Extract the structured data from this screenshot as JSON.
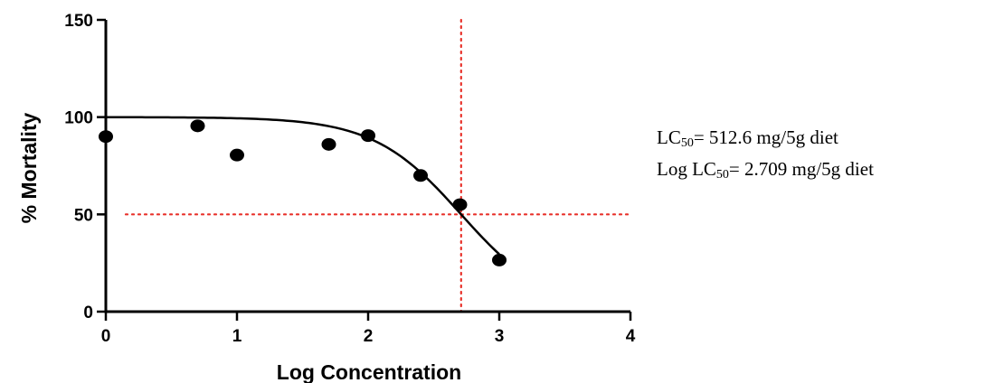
{
  "chart_data": {
    "type": "scatter",
    "xlabel": "Log Concentration",
    "ylabel": "% Mortality",
    "xlim": [
      0,
      4
    ],
    "ylim": [
      0,
      150
    ],
    "x_ticks": [
      "0",
      "1",
      "2",
      "3",
      "4"
    ],
    "y_ticks": [
      "0",
      "50",
      "100",
      "150"
    ],
    "x_tick_values": [
      0,
      1,
      2,
      3,
      4
    ],
    "y_tick_values": [
      0,
      50,
      100,
      150
    ],
    "points": [
      {
        "x": 0.0,
        "y": 90
      },
      {
        "x": 0.7,
        "y": 95.5
      },
      {
        "x": 1.0,
        "y": 80.5
      },
      {
        "x": 1.7,
        "y": 86
      },
      {
        "x": 2.0,
        "y": 90.5
      },
      {
        "x": 2.4,
        "y": 70
      },
      {
        "x": 2.7,
        "y": 55
      },
      {
        "x": 3.0,
        "y": 26.5
      }
    ],
    "fit_curve": {
      "top": 100,
      "bottom": 0,
      "log_ec50": 2.709,
      "hill_slope": -1.3,
      "x_range": [
        0,
        3
      ]
    },
    "reference_lines": {
      "x": 2.709,
      "y": 50,
      "color": "#e8322b",
      "style": "dotted"
    },
    "grid": false,
    "legend": "none",
    "point_color": "#000000"
  },
  "annotations": {
    "lc50_prefix": "LC",
    "lc50_sub": "50",
    "lc50_value": "= 512.6 mg/5g diet",
    "loglc50_prefix": "Log LC",
    "loglc50_sub": "50",
    "loglc50_value": "= 2.709 mg/5g diet"
  }
}
